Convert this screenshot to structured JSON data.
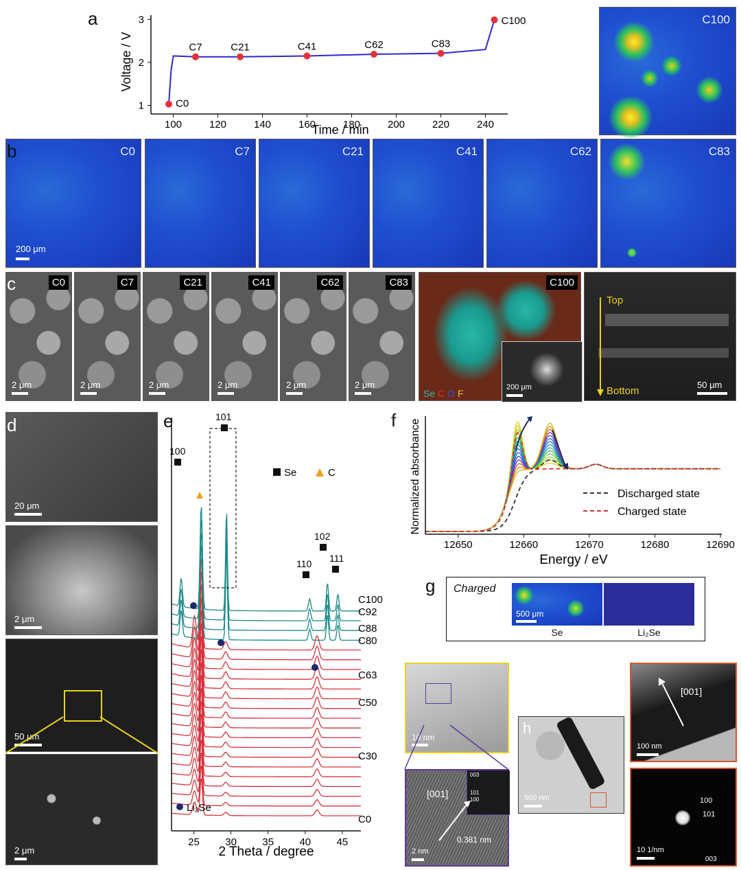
{
  "panel_labels": {
    "a": "a",
    "b": "b",
    "c": "c",
    "d": "d",
    "e": "e",
    "f": "f",
    "g": "g",
    "h": "h"
  },
  "panel_a": {
    "xlabel": "Time / min",
    "ylabel": "Voltage / V",
    "xticks": [
      "100",
      "120",
      "140",
      "160",
      "180",
      "200",
      "220",
      "240"
    ],
    "yticks": [
      "1",
      "2",
      "3"
    ],
    "points": [
      {
        "label": "C0",
        "x": 98,
        "y": 1.03
      },
      {
        "label": "C7",
        "x": 110,
        "y": 2.13
      },
      {
        "label": "C21",
        "x": 130,
        "y": 2.13
      },
      {
        "label": "C41",
        "x": 160,
        "y": 2.15
      },
      {
        "label": "C62",
        "x": 190,
        "y": 2.19
      },
      {
        "label": "C83",
        "x": 220,
        "y": 2.21
      },
      {
        "label": "C100",
        "x": 244,
        "y": 2.99
      }
    ],
    "map_label": "C100"
  },
  "panel_b": {
    "tiles": [
      "C0",
      "C7",
      "C21",
      "C41",
      "C62",
      "C83"
    ],
    "scalebar": "200 μm"
  },
  "panel_c": {
    "tiles": [
      "C0",
      "C7",
      "C21",
      "C41",
      "C62",
      "C83"
    ],
    "scalebar": "2 μm",
    "c100_label": "C100",
    "c100_legend": [
      "Se",
      "C",
      "O",
      "F"
    ],
    "c100_inset_scalebar": "200 μm",
    "cross_top": "Top",
    "cross_bottom": "Bottom",
    "cross_scalebar": "50 μm"
  },
  "panel_d": {
    "scalebars": [
      "20 μm",
      "2 μm",
      "50 μm",
      "2 μm"
    ]
  },
  "panel_e": {
    "xlabel": "2 Theta / degree",
    "xticks": [
      "25",
      "30",
      "35",
      "40",
      "45"
    ],
    "peak_labels": [
      "100",
      "101",
      "110",
      "102",
      "111"
    ],
    "legend_se": "Se",
    "legend_c": "C",
    "legend_li2se": "Li₂Se",
    "trace_labels": [
      "C100",
      "C92",
      "C88",
      "C80",
      "C63",
      "C50",
      "C30",
      "C0"
    ]
  },
  "panel_f": {
    "ylabel": "Normalized absorbance",
    "xlabel": "Energy / eV",
    "xticks": [
      "12650",
      "12660",
      "12670",
      "12680",
      "12690"
    ],
    "legend": [
      "Discharged state",
      "Charged state"
    ]
  },
  "panel_g": {
    "title": "Charged",
    "scalebar": "500 μm",
    "labels": [
      "Se",
      "Li₂Se"
    ]
  },
  "panel_h": {
    "scalebars": [
      "10 nm",
      "2 nm",
      "500 nm",
      "100 nm",
      "10 1/nm"
    ],
    "direction": "[001]",
    "d_spacing": "0.381 nm",
    "saed": [
      "100",
      "101",
      "003"
    ],
    "fft": [
      "003",
      "101",
      "100"
    ]
  },
  "chart_data": [
    {
      "type": "line",
      "title": "",
      "xlabel": "Time / min",
      "ylabel": "Voltage / V",
      "xlim": [
        90,
        250
      ],
      "ylim": [
        0.8,
        3.1
      ],
      "series": [
        {
          "name": "",
          "x": [
            98,
            99,
            100,
            110,
            130,
            160,
            190,
            220,
            240,
            244
          ],
          "values": [
            1.03,
            1.8,
            2.15,
            2.13,
            2.13,
            2.15,
            2.19,
            2.21,
            2.3,
            2.99
          ]
        }
      ]
    },
    {
      "type": "line",
      "title": "",
      "xlabel": "2 Theta / degree",
      "ylabel": "",
      "xlim": [
        22,
        47.5
      ],
      "series": []
    },
    {
      "type": "line",
      "title": "",
      "xlabel": "Energy / eV",
      "ylabel": "Normalized absorbance",
      "xlim": [
        12645,
        12690
      ],
      "series": []
    }
  ],
  "colors": {
    "teal": "#1a8a85",
    "red": "#d8323c",
    "marker": "#e8303a",
    "line": "#2a2ad0",
    "navy": "#1a2a6a",
    "orange": "#f0a020",
    "yellow": "#e6d21e",
    "orange_frame": "#d4562a",
    "purple_frame": "#5a3a9a"
  }
}
